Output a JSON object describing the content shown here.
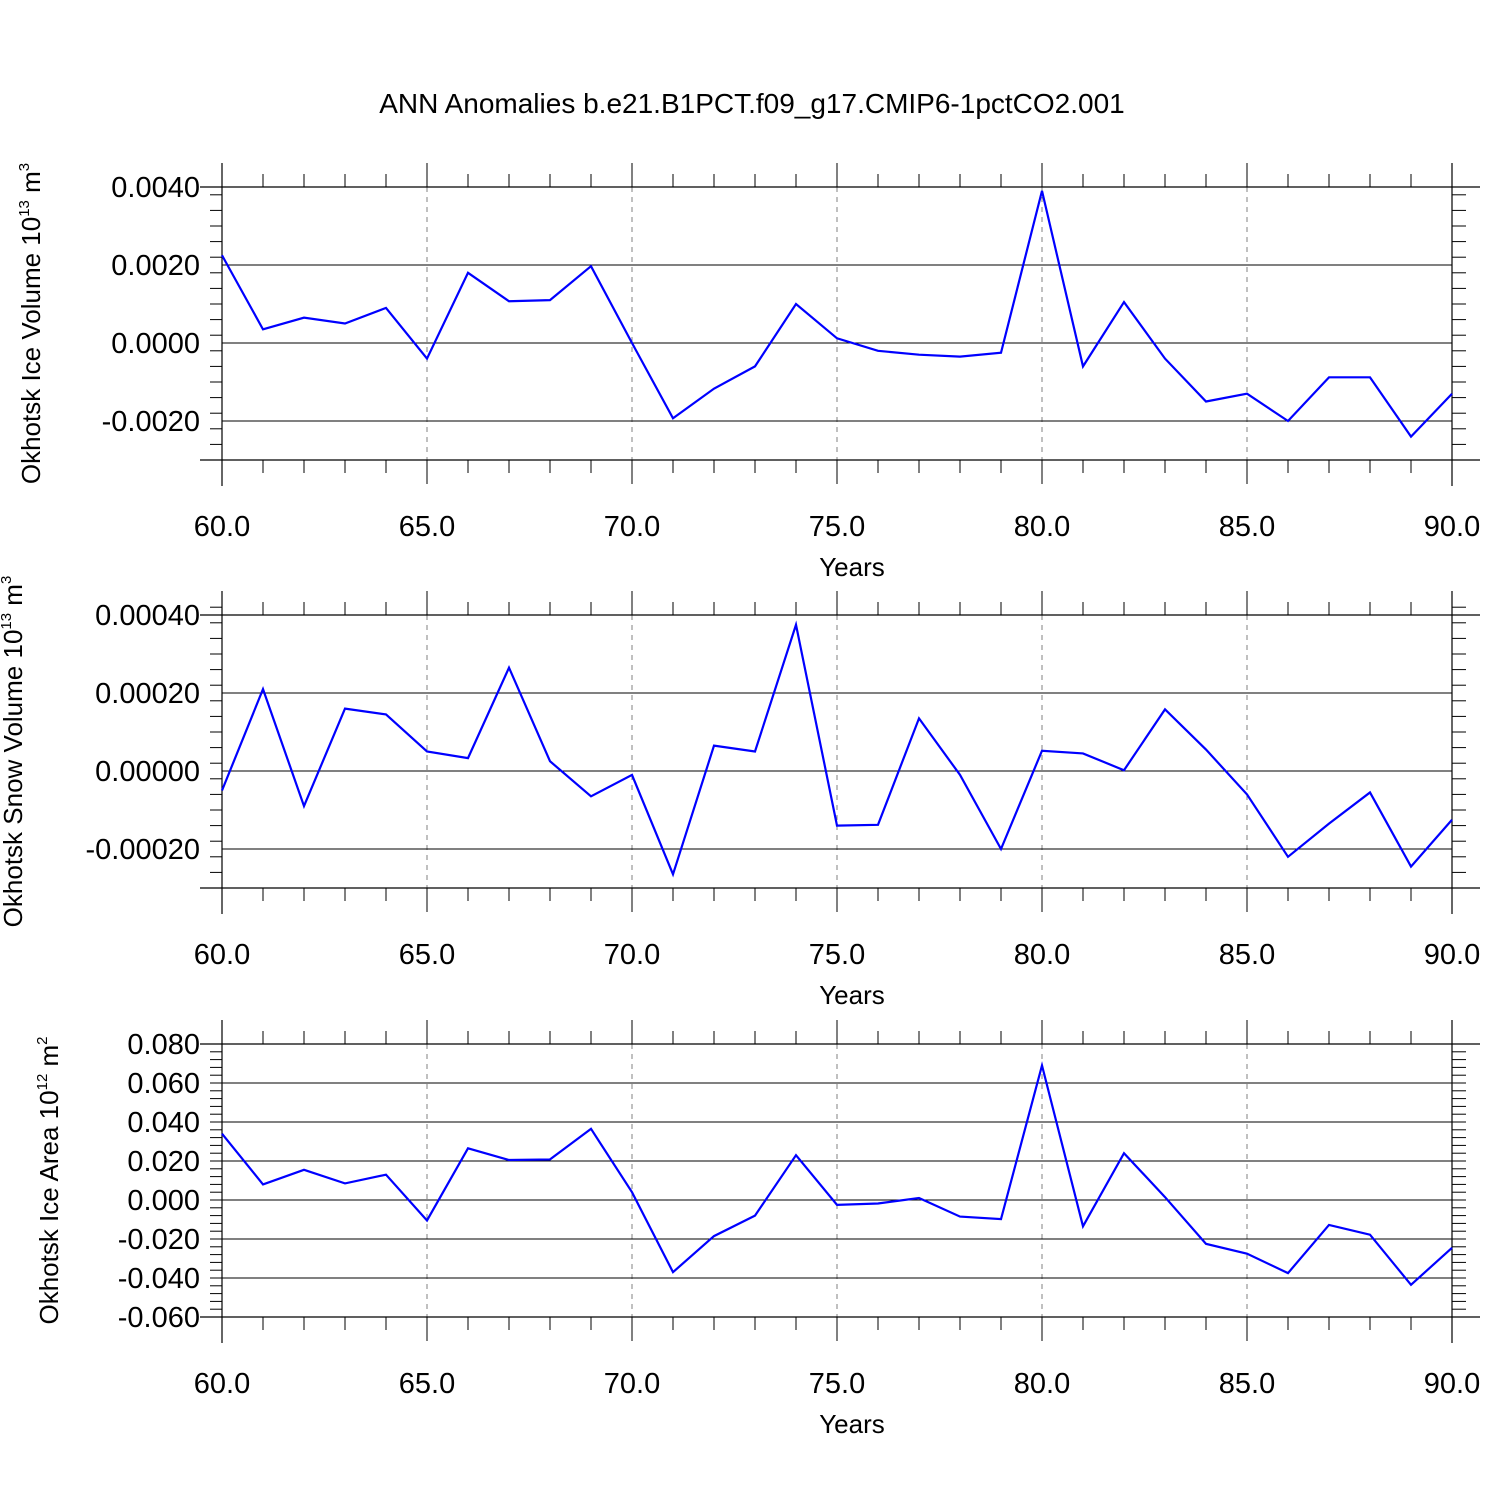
{
  "title": "ANN Anomalies b.e21.B1PCT.f09_g17.CMIP6-1pctCO2.001",
  "colors": {
    "line": "#0000ff",
    "frame": "#000000",
    "grid": "#808080"
  },
  "chart_data": [
    {
      "type": "line",
      "ylabel": {
        "text": "Okhotsk Ice Volume 10",
        "exp": "13",
        "unit": " m",
        "unit_exp": "3"
      },
      "xlabel": "Years",
      "xlim": [
        60,
        90
      ],
      "ylim": [
        -0.003,
        0.004
      ],
      "x_ticks": [
        "60.0",
        "65.0",
        "70.0",
        "75.0",
        "80.0",
        "85.0",
        "90.0"
      ],
      "y_ticks": [
        {
          "value": 0.004,
          "label": "0.0040"
        },
        {
          "value": 0.002,
          "label": "0.0020"
        },
        {
          "value": 0.0,
          "label": "0.0000"
        },
        {
          "value": -0.002,
          "label": "-0.0020"
        }
      ],
      "x_grid": [
        65,
        70,
        75,
        80,
        85
      ],
      "series": [
        {
          "x": [
            60,
            61,
            62,
            63,
            64,
            65,
            66,
            67,
            68,
            69,
            70,
            71,
            72,
            73,
            74,
            75,
            76,
            77,
            78,
            79,
            80,
            81,
            82,
            83,
            84,
            85,
            86,
            87,
            88,
            89,
            90
          ],
          "values": [
            0.00225,
            0.00035,
            0.00065,
            0.0005,
            0.0009,
            -0.0004,
            0.0018,
            0.00107,
            0.0011,
            0.00197,
            0.0,
            -0.00193,
            -0.00117,
            -0.0006,
            0.001,
            0.00012,
            -0.0002,
            -0.0003,
            -0.00035,
            -0.00025,
            0.0039,
            -0.0006,
            0.00105,
            -0.0004,
            -0.0015,
            -0.0013,
            -0.002,
            -0.00088,
            -0.00088,
            -0.0024,
            -0.0013
          ]
        }
      ]
    },
    {
      "type": "line",
      "ylabel": {
        "text": "Okhotsk Snow Volume 10",
        "exp": "13",
        "unit": " m",
        "unit_exp": "3"
      },
      "xlabel": "Years",
      "xlim": [
        60,
        90
      ],
      "ylim": [
        -0.0003,
        0.0004
      ],
      "x_ticks": [
        "60.0",
        "65.0",
        "70.0",
        "75.0",
        "80.0",
        "85.0",
        "90.0"
      ],
      "y_ticks": [
        {
          "value": 0.0004,
          "label": "0.00040"
        },
        {
          "value": 0.0002,
          "label": "0.00020"
        },
        {
          "value": 0.0,
          "label": "0.00000"
        },
        {
          "value": -0.0002,
          "label": "-0.00020"
        }
      ],
      "x_grid": [
        65,
        70,
        75,
        80,
        85
      ],
      "series": [
        {
          "x": [
            60,
            61,
            62,
            63,
            64,
            65,
            66,
            67,
            68,
            69,
            70,
            71,
            72,
            73,
            74,
            75,
            76,
            77,
            78,
            79,
            80,
            81,
            82,
            83,
            84,
            85,
            86,
            87,
            88,
            89,
            90
          ],
          "values": [
            -5e-05,
            0.00021,
            -9e-05,
            0.00016,
            0.000145,
            5e-05,
            3.3e-05,
            0.000265,
            2.5e-05,
            -6.5e-05,
            -1e-05,
            -0.000265,
            6.5e-05,
            5e-05,
            0.000375,
            -0.00014,
            -0.000138,
            0.000135,
            -1e-05,
            -0.0002,
            5.2e-05,
            4.5e-05,
            2e-06,
            0.000158,
            5.5e-05,
            -6e-05,
            -0.00022,
            -0.000135,
            -5.5e-05,
            -0.000245,
            -0.000125
          ]
        }
      ]
    },
    {
      "type": "line",
      "ylabel": {
        "text": "Okhotsk Ice Area 10",
        "exp": "12",
        "unit": " m",
        "unit_exp": "2"
      },
      "xlabel": "Years",
      "xlim": [
        60,
        90
      ],
      "ylim": [
        -0.06,
        0.08
      ],
      "x_ticks": [
        "60.0",
        "65.0",
        "70.0",
        "75.0",
        "80.0",
        "85.0",
        "90.0"
      ],
      "y_ticks": [
        {
          "value": 0.08,
          "label": "0.080"
        },
        {
          "value": 0.06,
          "label": "0.060"
        },
        {
          "value": 0.04,
          "label": "0.040"
        },
        {
          "value": 0.02,
          "label": "0.020"
        },
        {
          "value": 0.0,
          "label": "0.000"
        },
        {
          "value": -0.02,
          "label": "-0.020"
        },
        {
          "value": -0.04,
          "label": "-0.040"
        },
        {
          "value": -0.06,
          "label": "-0.060"
        }
      ],
      "x_grid": [
        65,
        70,
        75,
        80,
        85
      ],
      "series": [
        {
          "x": [
            60,
            61,
            62,
            63,
            64,
            65,
            66,
            67,
            68,
            69,
            70,
            71,
            72,
            73,
            74,
            75,
            76,
            77,
            78,
            79,
            80,
            81,
            82,
            83,
            84,
            85,
            86,
            87,
            88,
            89,
            90
          ],
          "values": [
            0.034,
            0.008,
            0.0155,
            0.0085,
            0.013,
            -0.0105,
            0.0265,
            0.0205,
            0.0208,
            0.0365,
            0.004,
            -0.037,
            -0.0185,
            -0.008,
            0.023,
            -0.0025,
            -0.0018,
            0.001,
            -0.0085,
            -0.0098,
            0.069,
            -0.0135,
            0.024,
            0.0015,
            -0.0225,
            -0.0275,
            -0.0375,
            -0.0128,
            -0.0178,
            -0.0435,
            -0.0245
          ]
        }
      ]
    }
  ]
}
